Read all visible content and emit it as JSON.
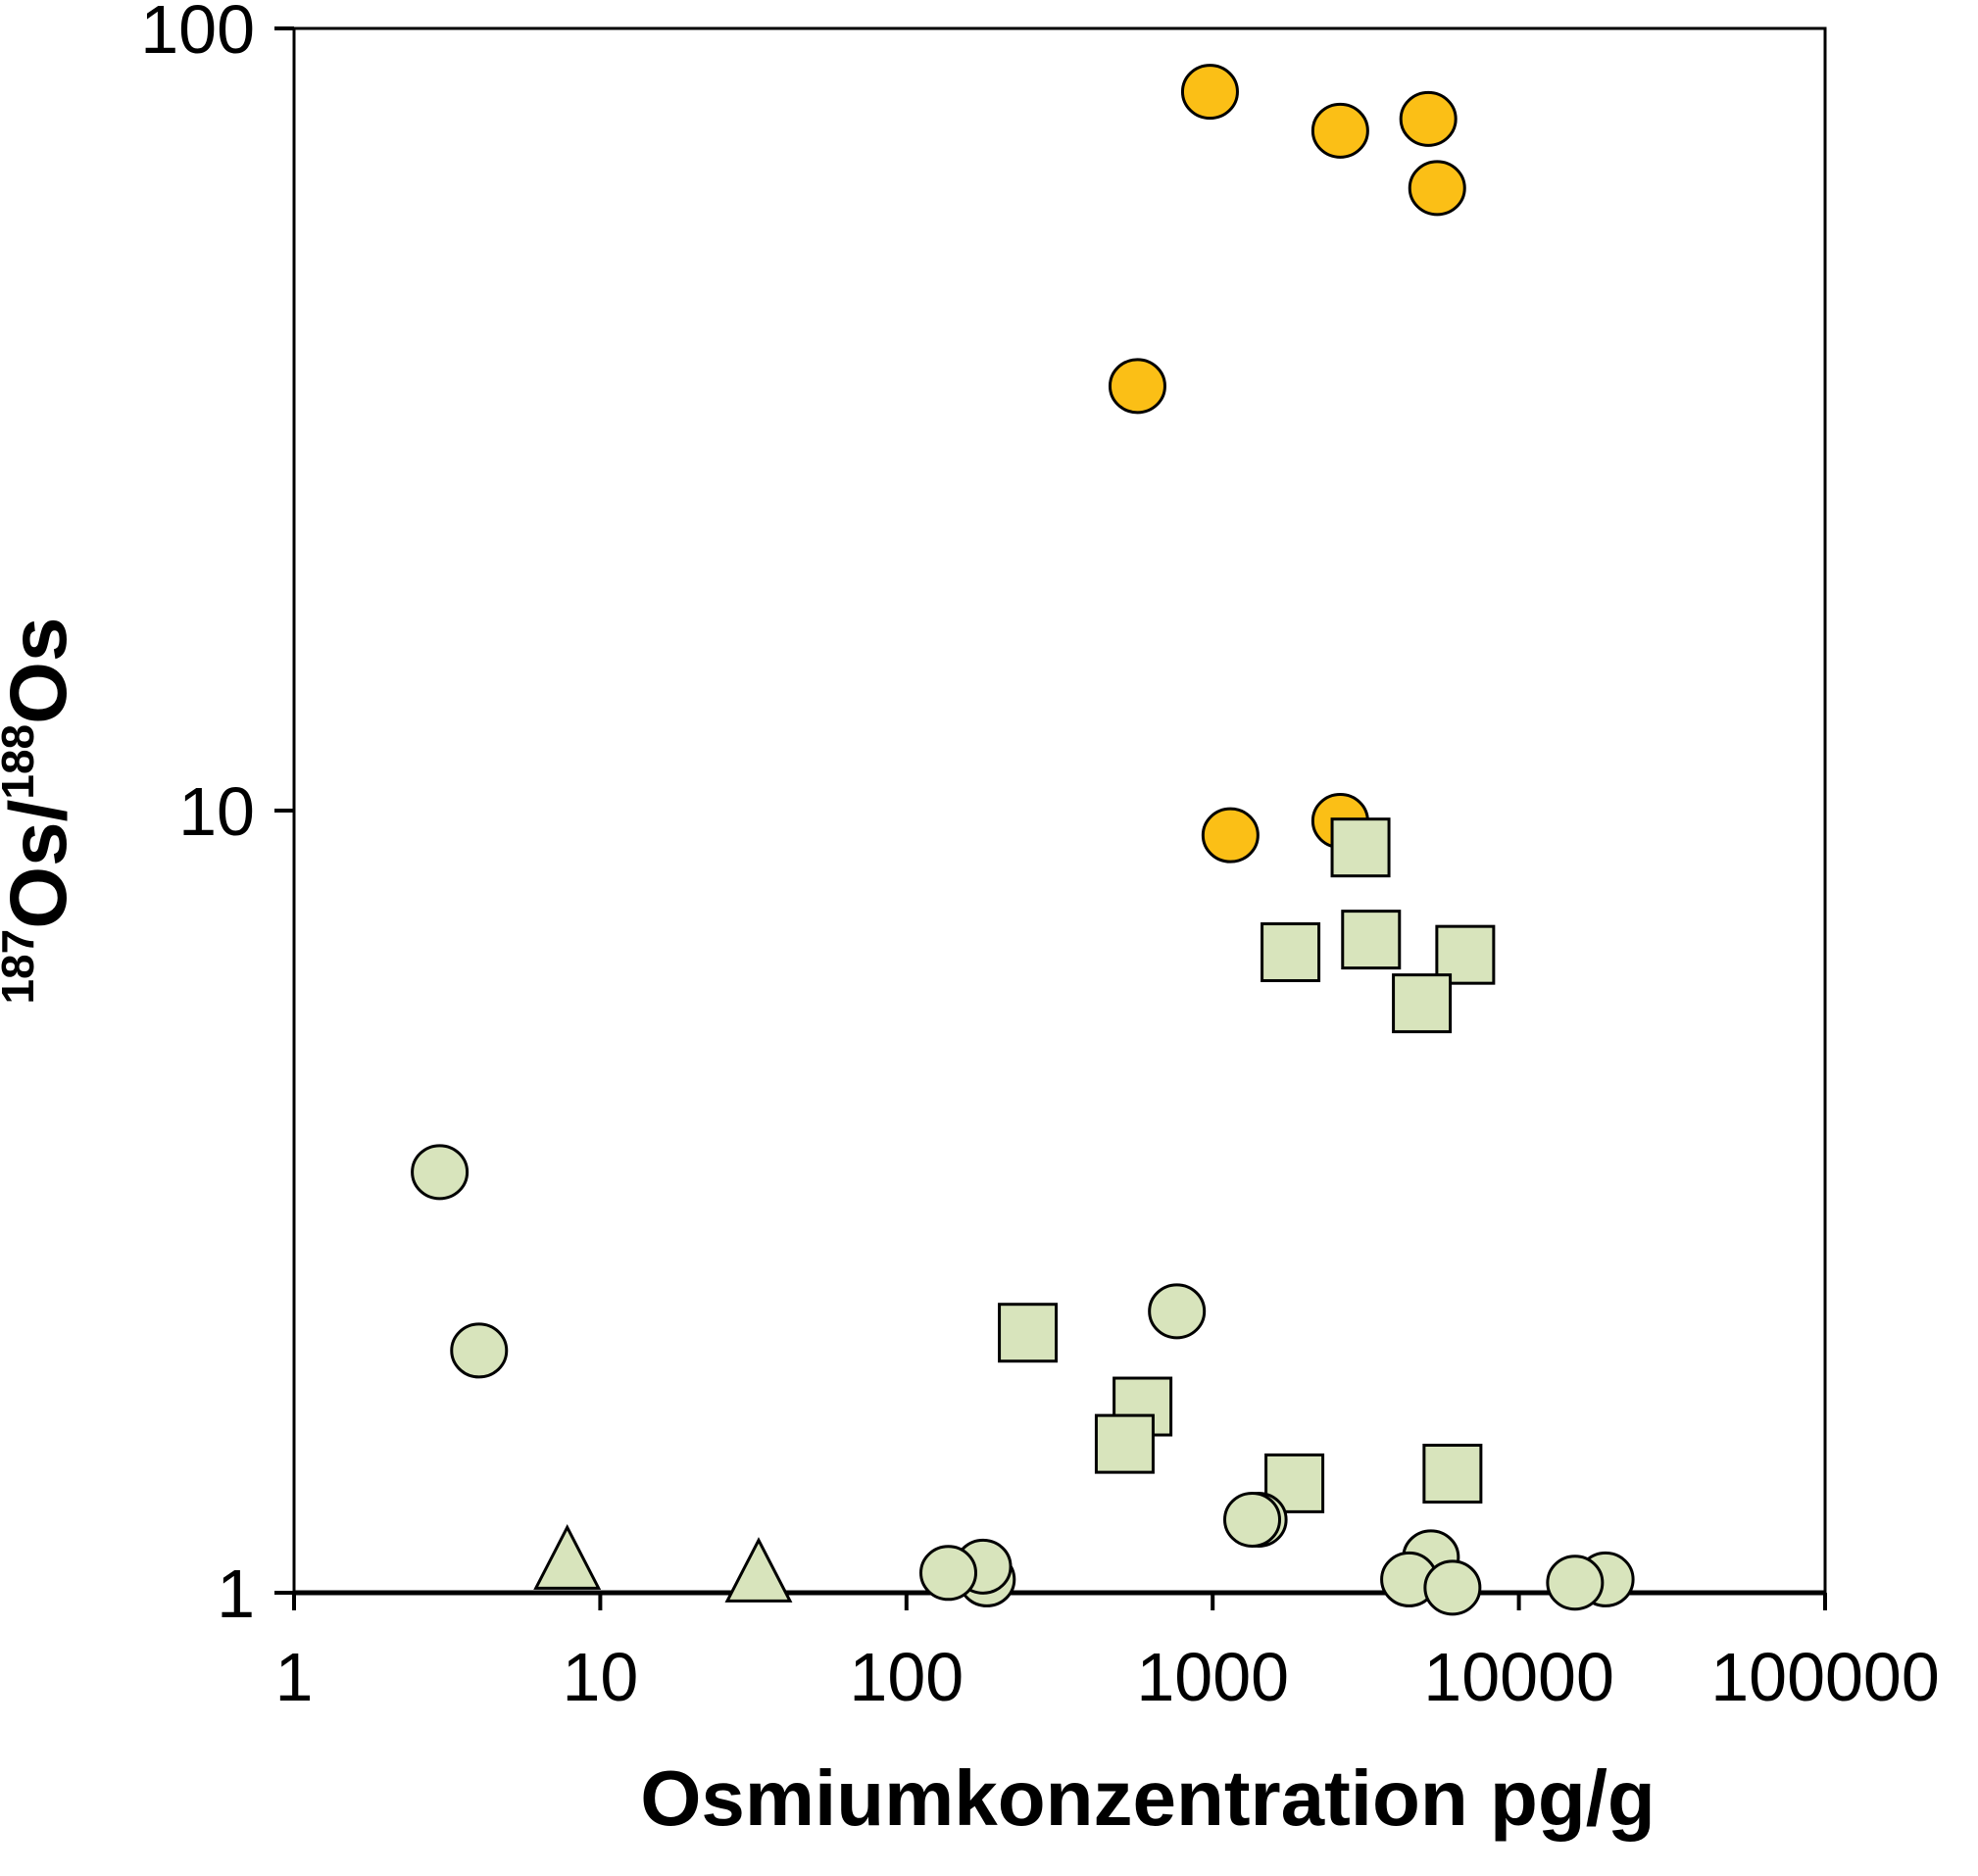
{
  "chart_data": {
    "type": "scatter",
    "xscale": "log",
    "yscale": "log",
    "xlim": [
      1,
      100000
    ],
    "ylim": [
      1,
      100
    ],
    "grid": false,
    "xlabel": "Osmiumkonzentration pg/g",
    "ylabel": {
      "sup1": "187",
      "part1": "Os/",
      "sup2": "188",
      "part2": "Os"
    },
    "xticks": [
      "1",
      "10",
      "100",
      "1000",
      "10000",
      "100000"
    ],
    "yticks": [
      "1",
      "10",
      "100"
    ],
    "colors": {
      "orange": "#FBBF16",
      "green": "#D8E4BC",
      "edge": "#000000"
    },
    "series": [
      {
        "marker": "circle",
        "color": "#FBBF16",
        "points": [
          [
            980,
            83
          ],
          [
            2610,
            74
          ],
          [
            5060,
            76.6
          ],
          [
            5410,
            62.5
          ],
          [
            568,
            34.9
          ],
          [
            1143,
            9.3
          ],
          [
            2610,
            9.7
          ]
        ]
      },
      {
        "marker": "square",
        "color": "#D8E4BC",
        "points": [
          [
            3040,
            8.97
          ],
          [
            1795,
            6.59
          ],
          [
            3290,
            6.84
          ],
          [
            6680,
            6.54
          ],
          [
            4820,
            5.67
          ],
          [
            249,
            2.15
          ],
          [
            590,
            1.73
          ],
          [
            516,
            1.55
          ],
          [
            1849,
            1.38
          ],
          [
            6070,
            1.42
          ]
        ]
      },
      {
        "marker": "circle",
        "color": "#D8E4BC",
        "points": [
          [
            2.99,
            3.45
          ],
          [
            4.02,
            2.04
          ],
          [
            764,
            2.29
          ],
          [
            1413,
            1.24
          ],
          [
            1346,
            1.24
          ],
          [
            183,
            1.04
          ],
          [
            178,
            1.08
          ],
          [
            137,
            1.06
          ],
          [
            5160,
            1.11
          ],
          [
            4380,
            1.04
          ],
          [
            6070,
            1.015
          ],
          [
            19200,
            1.04
          ],
          [
            15250,
            1.03
          ]
        ]
      },
      {
        "marker": "triangle",
        "color": "#D8E4BC",
        "points": [
          [
            7.8,
            1.08
          ],
          [
            32.9,
            1.04
          ]
        ]
      }
    ]
  }
}
